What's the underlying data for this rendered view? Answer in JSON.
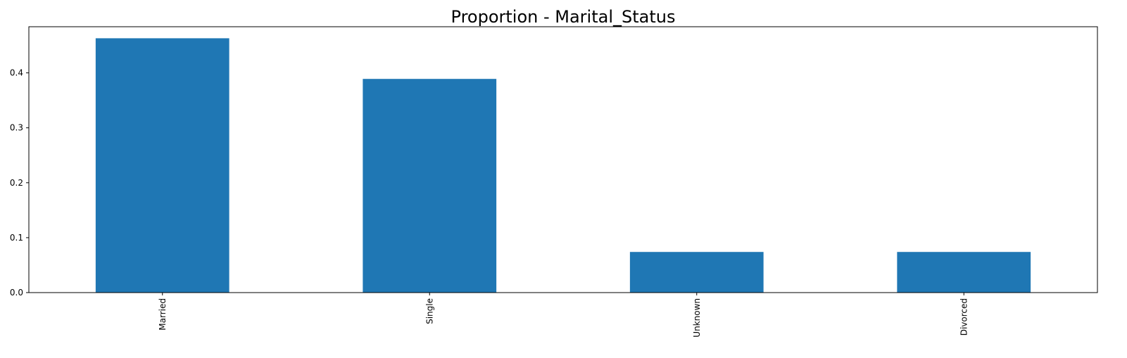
{
  "chart_data": {
    "type": "bar",
    "title": "Proportion - Marital_Status",
    "xlabel": "",
    "ylabel": "",
    "categories": [
      "Married",
      "Single",
      "Unknown",
      "Divorced"
    ],
    "values": [
      0.463,
      0.389,
      0.074,
      0.074
    ],
    "ylim": [
      0,
      0.484
    ],
    "yticks": [
      0.0,
      0.1,
      0.2,
      0.3,
      0.4
    ],
    "ytick_labels": [
      "0.0",
      "0.1",
      "0.2",
      "0.3",
      "0.4"
    ],
    "grid": false,
    "legend": "none",
    "x_tick_rotation": "vertical",
    "bar_color": "#1f77b4"
  }
}
